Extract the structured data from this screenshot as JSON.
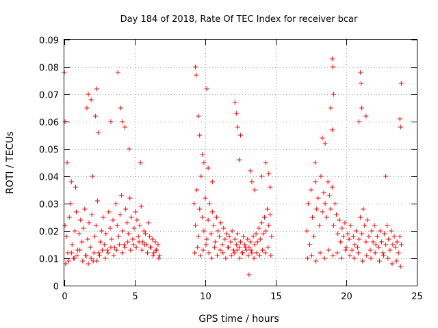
{
  "chart_data": {
    "type": "scatter",
    "title": "Day 184 of 2018, Rate Of TEC Index for receiver bcar",
    "xlabel": "GPS time / hours",
    "ylabel": "ROTI / TECUs",
    "xlim": [
      0,
      25
    ],
    "ylim": [
      0,
      0.09
    ],
    "x_ticks": [
      "0",
      "5",
      "10",
      "15",
      "20",
      "25"
    ],
    "y_ticks": [
      "0",
      "0.01",
      "0.02",
      "0.03",
      "0.04",
      "0.05",
      "0.06",
      "0.07",
      "0.08",
      "0.09"
    ],
    "grid": true,
    "marker": "plus",
    "color": "#ff0000",
    "series": [
      {
        "x": [
          0.05,
          0.15,
          0.25,
          0.35,
          0.45,
          0.55,
          0.65,
          0.75,
          0.85,
          0.95,
          1.05,
          1.15,
          1.25,
          1.35,
          1.45,
          1.55,
          1.65,
          1.75,
          1.85,
          1.95,
          2.05,
          2.15,
          2.25,
          2.35,
          2.45,
          2.55,
          2.65,
          2.75,
          2.85,
          2.95,
          3.05,
          3.15,
          3.25,
          3.35,
          3.45,
          3.55,
          3.65,
          3.75,
          3.85,
          3.95,
          4.05,
          4.15,
          4.25,
          4.35,
          4.45,
          4.55,
          4.65,
          4.75,
          4.85,
          4.95,
          5.05,
          5.15,
          5.25,
          5.35,
          5.45,
          5.55,
          5.65,
          5.75,
          5.85,
          5.95,
          6.05,
          6.15,
          6.25,
          6.35,
          6.45,
          6.55,
          6.65,
          6.75,
          0.1,
          0.3,
          0.5,
          0.7,
          0.9,
          1.1,
          1.3,
          1.5,
          1.7,
          1.9,
          2.1,
          2.3,
          2.5,
          2.7,
          2.9,
          3.1,
          3.3,
          3.5,
          3.7,
          3.9,
          4.1,
          4.3,
          4.5,
          4.7,
          4.9,
          5.1,
          5.3,
          5.5,
          5.7,
          5.9,
          6.1,
          6.3,
          6.5,
          6.7,
          0.0,
          0.05,
          0.2,
          0.5,
          0.8,
          1.6,
          1.7,
          1.9,
          2.2,
          2.3,
          2.4,
          3.8,
          4.0,
          4.1,
          4.3,
          4.6,
          5.4,
          3.3,
          2.0
        ],
        "y": [
          0.022,
          0.018,
          0.012,
          0.025,
          0.03,
          0.015,
          0.01,
          0.02,
          0.027,
          0.013,
          0.019,
          0.024,
          0.016,
          0.021,
          0.028,
          0.011,
          0.017,
          0.023,
          0.014,
          0.026,
          0.009,
          0.018,
          0.022,
          0.031,
          0.012,
          0.016,
          0.02,
          0.025,
          0.015,
          0.019,
          0.013,
          0.027,
          0.021,
          0.017,
          0.024,
          0.014,
          0.03,
          0.022,
          0.018,
          0.026,
          0.033,
          0.02,
          0.015,
          0.028,
          0.023,
          0.019,
          0.032,
          0.025,
          0.017,
          0.021,
          0.027,
          0.024,
          0.018,
          0.022,
          0.029,
          0.016,
          0.02,
          0.019,
          0.015,
          0.023,
          0.018,
          0.014,
          0.017,
          0.012,
          0.016,
          0.013,
          0.015,
          0.011,
          0.008,
          0.009,
          0.012,
          0.01,
          0.011,
          0.013,
          0.009,
          0.011,
          0.008,
          0.01,
          0.012,
          0.009,
          0.011,
          0.013,
          0.01,
          0.012,
          0.014,
          0.011,
          0.013,
          0.015,
          0.012,
          0.014,
          0.016,
          0.013,
          0.015,
          0.014,
          0.016,
          0.013,
          0.015,
          0.012,
          0.014,
          0.011,
          0.013,
          0.01,
          0.078,
          0.06,
          0.045,
          0.038,
          0.036,
          0.065,
          0.07,
          0.068,
          0.062,
          0.072,
          0.056,
          0.078,
          0.065,
          0.06,
          0.058,
          0.05,
          0.045,
          0.06,
          0.04
        ]
      },
      {
        "x": [
          9.2,
          9.3,
          9.4,
          9.5,
          9.6,
          9.7,
          9.8,
          9.9,
          10.0,
          10.1,
          10.2,
          10.3,
          10.4,
          10.5,
          10.6,
          10.7,
          10.8,
          10.9,
          11.0,
          11.1,
          11.2,
          11.3,
          11.4,
          11.5,
          11.6,
          11.7,
          11.8,
          11.9,
          12.0,
          12.1,
          12.2,
          12.3,
          12.4,
          12.5,
          12.6,
          12.7,
          12.8,
          12.9,
          13.0,
          13.1,
          13.2,
          13.3,
          13.4,
          13.5,
          13.6,
          13.7,
          13.8,
          13.9,
          14.0,
          14.1,
          14.2,
          14.3,
          14.4,
          14.5,
          14.6,
          14.7,
          9.25,
          9.45,
          9.65,
          9.85,
          10.05,
          10.25,
          10.45,
          10.65,
          10.85,
          11.05,
          11.25,
          11.45,
          11.65,
          11.85,
          12.05,
          12.25,
          12.45,
          12.65,
          12.85,
          13.05,
          13.25,
          13.45,
          13.65,
          13.85,
          14.05,
          14.25,
          14.45,
          14.65,
          9.3,
          9.35,
          9.5,
          9.6,
          9.8,
          9.9,
          10.1,
          10.2,
          10.5,
          12.1,
          12.2,
          12.3,
          12.5,
          12.4,
          13.2,
          13.3,
          13.5,
          14.0,
          14.3,
          14.5,
          14.6,
          13.1
        ],
        "y": [
          0.03,
          0.022,
          0.035,
          0.018,
          0.028,
          0.04,
          0.025,
          0.02,
          0.032,
          0.017,
          0.024,
          0.03,
          0.019,
          0.027,
          0.022,
          0.016,
          0.025,
          0.02,
          0.018,
          0.023,
          0.015,
          0.021,
          0.017,
          0.019,
          0.014,
          0.018,
          0.016,
          0.02,
          0.013,
          0.017,
          0.015,
          0.019,
          0.014,
          0.016,
          0.012,
          0.018,
          0.015,
          0.013,
          0.017,
          0.014,
          0.016,
          0.012,
          0.018,
          0.015,
          0.019,
          0.016,
          0.021,
          0.017,
          0.023,
          0.019,
          0.025,
          0.02,
          0.028,
          0.022,
          0.026,
          0.018,
          0.012,
          0.014,
          0.011,
          0.013,
          0.015,
          0.012,
          0.01,
          0.014,
          0.011,
          0.013,
          0.012,
          0.01,
          0.014,
          0.011,
          0.012,
          0.013,
          0.01,
          0.012,
          0.014,
          0.011,
          0.013,
          0.01,
          0.012,
          0.011,
          0.013,
          0.012,
          0.014,
          0.011,
          0.08,
          0.077,
          0.062,
          0.055,
          0.048,
          0.045,
          0.072,
          0.043,
          0.038,
          0.067,
          0.063,
          0.058,
          0.055,
          0.046,
          0.042,
          0.038,
          0.035,
          0.04,
          0.045,
          0.041,
          0.036,
          0.004
        ]
      },
      {
        "x": [
          17.2,
          17.3,
          17.4,
          17.5,
          17.6,
          17.7,
          17.8,
          17.9,
          18.0,
          18.1,
          18.2,
          18.3,
          18.4,
          18.5,
          18.6,
          18.7,
          18.8,
          18.9,
          19.0,
          19.1,
          19.2,
          19.3,
          19.4,
          19.5,
          19.6,
          19.7,
          19.8,
          19.9,
          20.0,
          20.1,
          20.2,
          20.3,
          20.4,
          20.5,
          20.6,
          20.7,
          20.8,
          20.9,
          21.0,
          21.1,
          21.2,
          21.3,
          21.4,
          21.5,
          21.6,
          21.7,
          21.8,
          21.9,
          22.0,
          22.1,
          22.2,
          22.3,
          22.4,
          22.5,
          22.6,
          22.7,
          22.8,
          22.9,
          23.0,
          23.1,
          23.2,
          23.3,
          23.4,
          23.5,
          23.6,
          23.7,
          23.8,
          23.9,
          17.25,
          17.55,
          17.85,
          18.15,
          18.45,
          18.75,
          19.05,
          19.35,
          19.65,
          19.95,
          20.25,
          20.55,
          20.85,
          21.15,
          21.45,
          21.75,
          22.05,
          22.35,
          22.65,
          22.95,
          23.25,
          23.55,
          23.85,
          19.0,
          19.05,
          19.1,
          18.9,
          19.0,
          18.5,
          18.3,
          17.8,
          21.0,
          21.05,
          21.1,
          20.9,
          21.4,
          23.9,
          23.8,
          23.85,
          22.8
        ],
        "y": [
          0.02,
          0.03,
          0.015,
          0.035,
          0.025,
          0.018,
          0.038,
          0.028,
          0.032,
          0.022,
          0.04,
          0.027,
          0.034,
          0.03,
          0.025,
          0.038,
          0.033,
          0.028,
          0.036,
          0.022,
          0.03,
          0.026,
          0.019,
          0.024,
          0.016,
          0.021,
          0.018,
          0.023,
          0.014,
          0.019,
          0.017,
          0.022,
          0.013,
          0.018,
          0.015,
          0.02,
          0.014,
          0.017,
          0.025,
          0.019,
          0.028,
          0.022,
          0.016,
          0.024,
          0.018,
          0.013,
          0.02,
          0.016,
          0.022,
          0.015,
          0.018,
          0.014,
          0.02,
          0.016,
          0.012,
          0.019,
          0.015,
          0.022,
          0.017,
          0.013,
          0.02,
          0.015,
          0.018,
          0.014,
          0.016,
          0.012,
          0.018,
          0.015,
          0.01,
          0.011,
          0.009,
          0.012,
          0.01,
          0.013,
          0.011,
          0.012,
          0.01,
          0.013,
          0.011,
          0.01,
          0.012,
          0.009,
          0.011,
          0.01,
          0.012,
          0.009,
          0.011,
          0.01,
          0.008,
          0.009,
          0.007,
          0.083,
          0.08,
          0.07,
          0.065,
          0.057,
          0.052,
          0.054,
          0.045,
          0.078,
          0.074,
          0.065,
          0.06,
          0.062,
          0.074,
          0.061,
          0.058,
          0.04
        ]
      }
    ]
  }
}
